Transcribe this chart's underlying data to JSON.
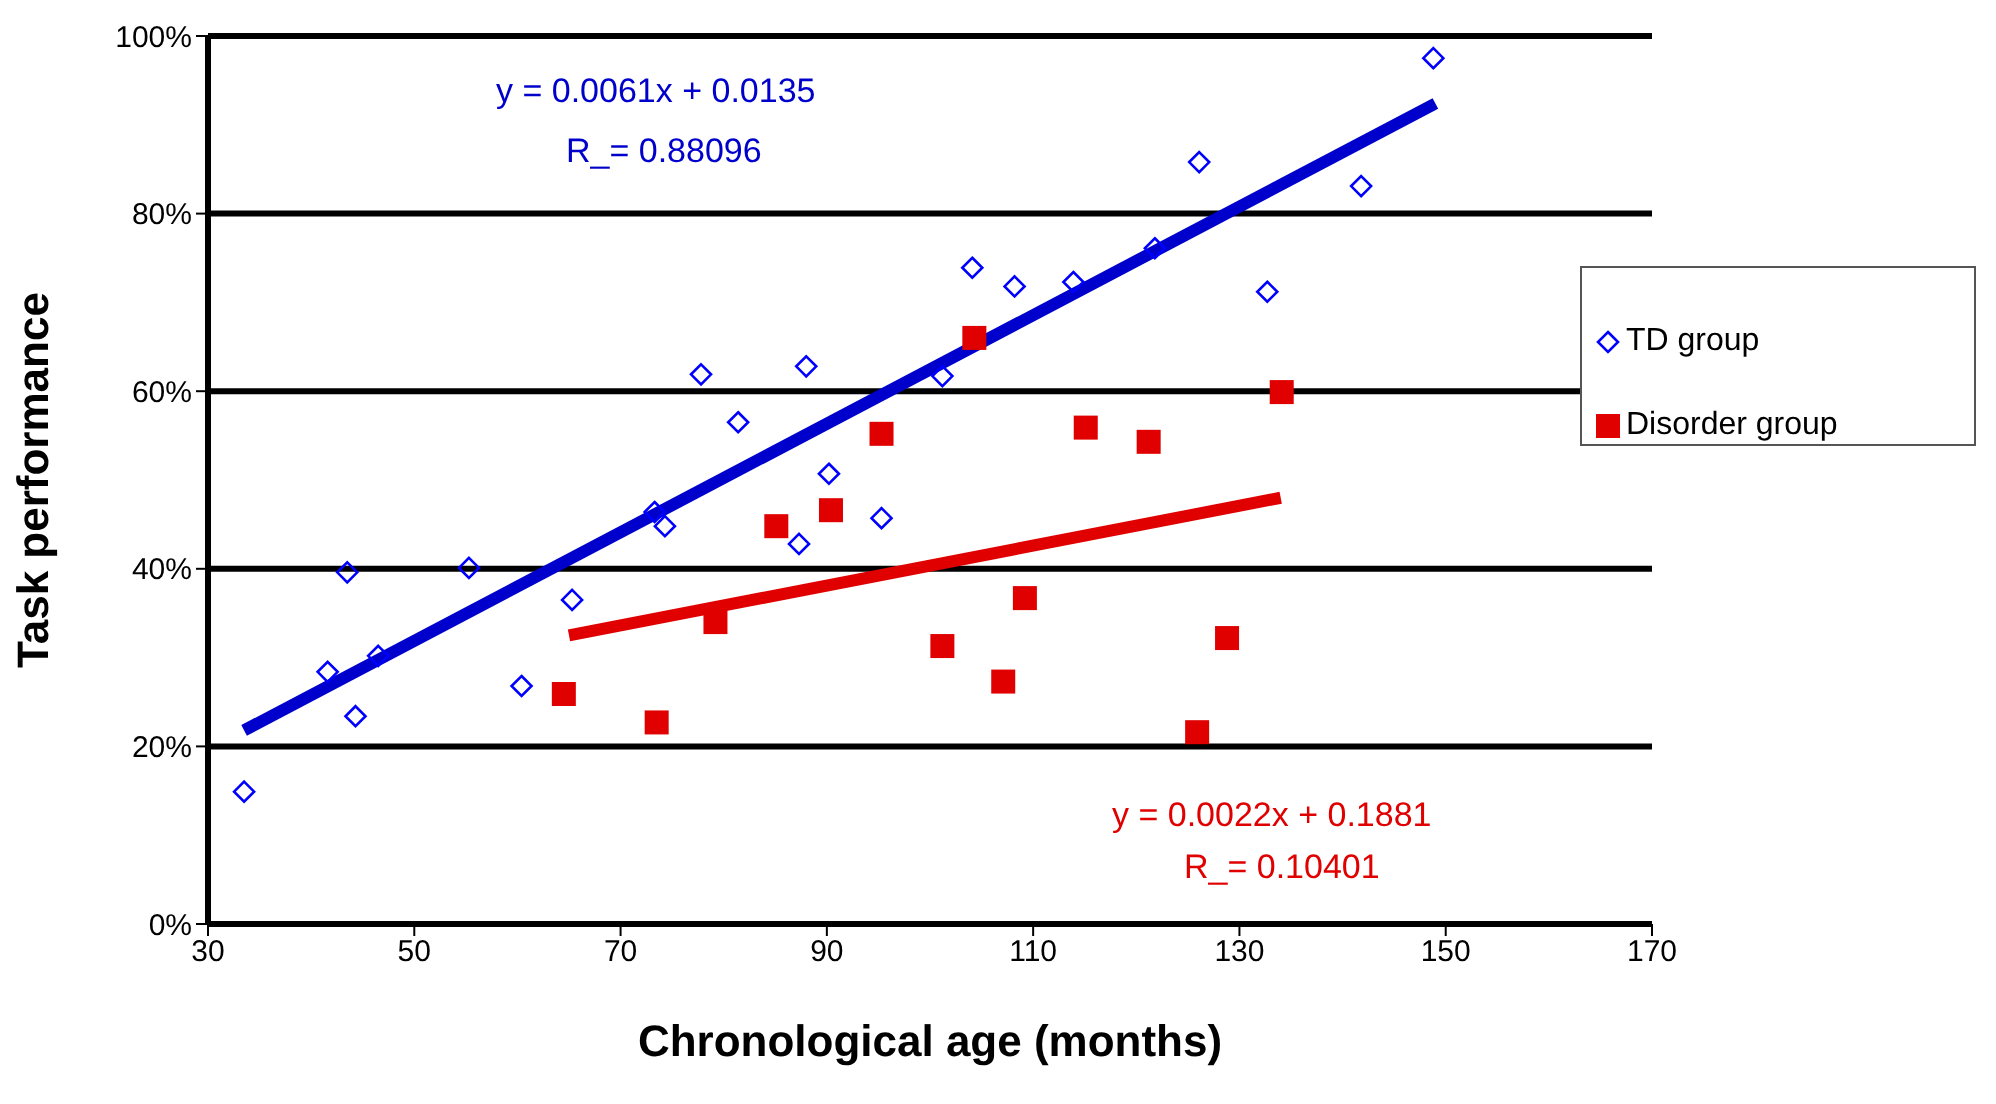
{
  "chart_data": {
    "type": "scatter",
    "xlabel": "Chronological age (months)",
    "ylabel": "Task performance",
    "xlim": [
      30,
      170
    ],
    "xticks": [
      30,
      50,
      70,
      90,
      110,
      130,
      150,
      170
    ],
    "ylim": [
      0,
      100
    ],
    "yticks": [
      {
        "value": 0,
        "label": "0%"
      },
      {
        "value": 20,
        "label": "20%"
      },
      {
        "value": 40,
        "label": "40%"
      },
      {
        "value": 60,
        "label": "60%"
      },
      {
        "value": 80,
        "label": "80%"
      },
      {
        "value": 100,
        "label": "100%"
      }
    ],
    "grid": "y",
    "legend": "right",
    "series": [
      {
        "name": "TD group",
        "marker": "diamond",
        "color": "#0000ff",
        "x": [
          33.5,
          41.6,
          43.5,
          44.3,
          46.5,
          55.3,
          60.4,
          65.3,
          73.3,
          74.3,
          77.8,
          81.4,
          87.3,
          88,
          90.2,
          95.3,
          101.2,
          104.1,
          108.2,
          113.9,
          121.8,
          126.1,
          132.7,
          141.8,
          148.8
        ],
        "values": [
          14.9,
          28.4,
          39.6,
          23.4,
          30.2,
          40.1,
          26.8,
          36.5,
          46.4,
          44.8,
          61.9,
          56.5,
          42.8,
          62.8,
          50.7,
          45.7,
          61.7,
          73.9,
          71.8,
          72.3,
          76.1,
          85.8,
          71.2,
          83.1,
          97.5
        ]
      },
      {
        "name": "Disorder group",
        "marker": "square",
        "color": "#e00000",
        "x": [
          64.5,
          73.5,
          79.2,
          85.1,
          90.4,
          95.3,
          101.2,
          104.3,
          107.1,
          109.2,
          115.1,
          121.2,
          125.9,
          128.8,
          134.1
        ],
        "values": [
          25.9,
          22.7,
          34.0,
          44.8,
          46.6,
          55.2,
          31.3,
          66.0,
          27.3,
          36.7,
          55.9,
          54.3,
          21.6,
          32.2,
          59.9
        ]
      },
      {
        "type": "line",
        "marker": "none",
        "color": "#0000cc",
        "x": [
          33.5,
          149
        ],
        "values": [
          21.8,
          92.4
        ]
      },
      {
        "type": "line",
        "marker": "none",
        "color": "#e00000",
        "x": [
          65,
          134
        ],
        "values": [
          32.5,
          48.0
        ]
      }
    ],
    "annotations": [
      "y = 0.0061x + 0.0135",
      "R_= 0.88096",
      "y = 0.0022x + 0.1881",
      "R_= 0.10401"
    ]
  }
}
